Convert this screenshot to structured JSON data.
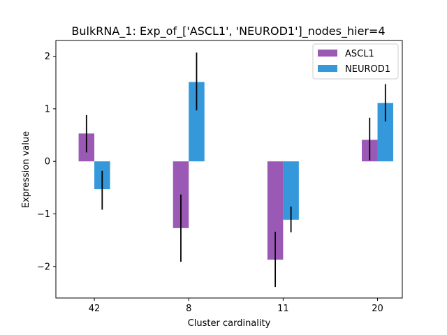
{
  "chart_data": {
    "type": "bar",
    "title": "BulkRNA_1: Exp_of_['ASCL1', 'NEUROD1']_nodes_hier=4",
    "xlabel": "Cluster cardinality",
    "ylabel": "Expression value",
    "categories": [
      "42",
      "8",
      "11",
      "20"
    ],
    "ylim": [
      -2.6,
      2.3
    ],
    "yticks": [
      -2,
      -1,
      0,
      1,
      2
    ],
    "ytick_labels": [
      "−2",
      "−1",
      "0",
      "1",
      "2"
    ],
    "legend_position": "top-right",
    "grid": false,
    "series": [
      {
        "name": "ASCL1",
        "color": "#9b59b6",
        "values": [
          0.53,
          -1.27,
          -1.87,
          0.41
        ],
        "err_low": [
          0.17,
          -1.91,
          -2.39,
          0.02
        ],
        "err_high": [
          0.88,
          -0.63,
          -1.34,
          0.83
        ]
      },
      {
        "name": "NEUROD1",
        "color": "#3498db",
        "values": [
          -0.53,
          1.51,
          -1.11,
          1.11
        ],
        "err_low": [
          -0.92,
          0.97,
          -1.35,
          0.76
        ],
        "err_high": [
          -0.18,
          2.07,
          -0.86,
          1.47
        ]
      }
    ]
  }
}
